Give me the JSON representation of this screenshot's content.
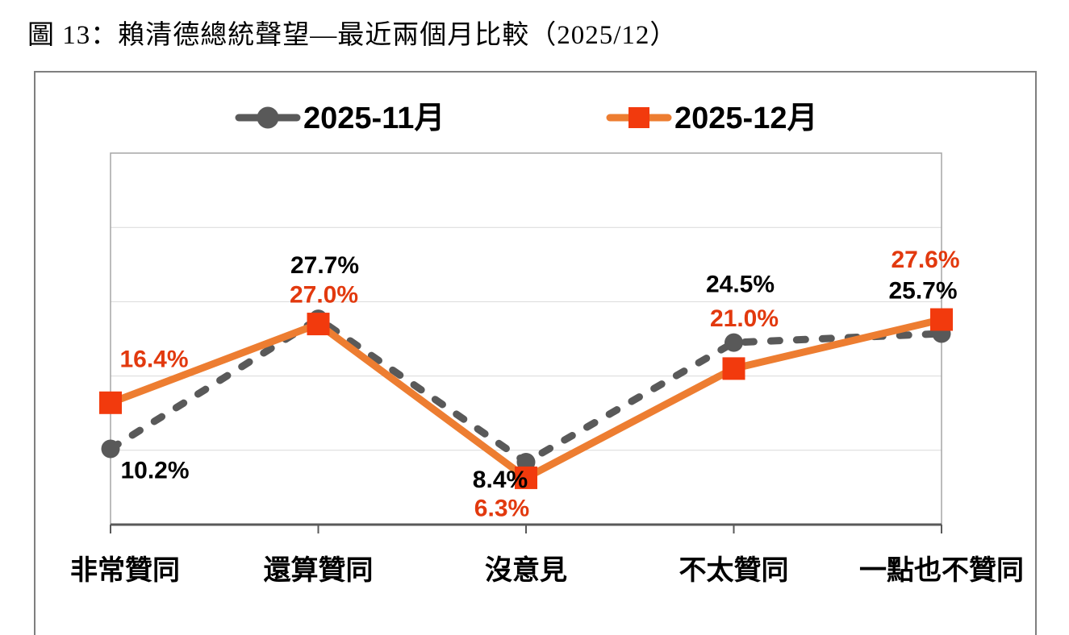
{
  "title": "圖 13：賴清德總統聲望—最近兩個月比較（2025/12）",
  "chart_data": {
    "type": "line",
    "categories": [
      "非常贊同",
      "還算贊同",
      "沒意見",
      "不太贊同",
      "一點也不贊同"
    ],
    "series": [
      {
        "name": "2025-11月",
        "values": [
          10.2,
          27.7,
          8.4,
          24.5,
          25.7
        ],
        "labels": [
          "10.2%",
          "27.7%",
          "8.4%",
          "24.5%",
          "25.7%"
        ],
        "color": "#595959",
        "marker": "circle",
        "marker_color": "#595959",
        "line_style": "dashed",
        "label_color": "#000000"
      },
      {
        "name": "2025-12月",
        "values": [
          16.4,
          27.0,
          6.3,
          21.0,
          27.6
        ],
        "labels": [
          "16.4%",
          "27.0%",
          "6.3%",
          "21.0%",
          "27.6%"
        ],
        "color": "#ED7D31",
        "marker": "square",
        "marker_color": "#F23A0D",
        "line_style": "solid",
        "label_color": "#E2390E"
      }
    ],
    "ylim": [
      0,
      50
    ],
    "gridlines_pct": [
      10,
      20,
      30,
      40
    ],
    "grid": true,
    "legend_position": "top",
    "colors": {
      "grid": "#D9D9D9",
      "plot_border": "#A6A6A6",
      "axis": "#595959",
      "frame_border": "#7F7F7F",
      "category_text": "#000000",
      "legend_text": "#000000"
    }
  }
}
